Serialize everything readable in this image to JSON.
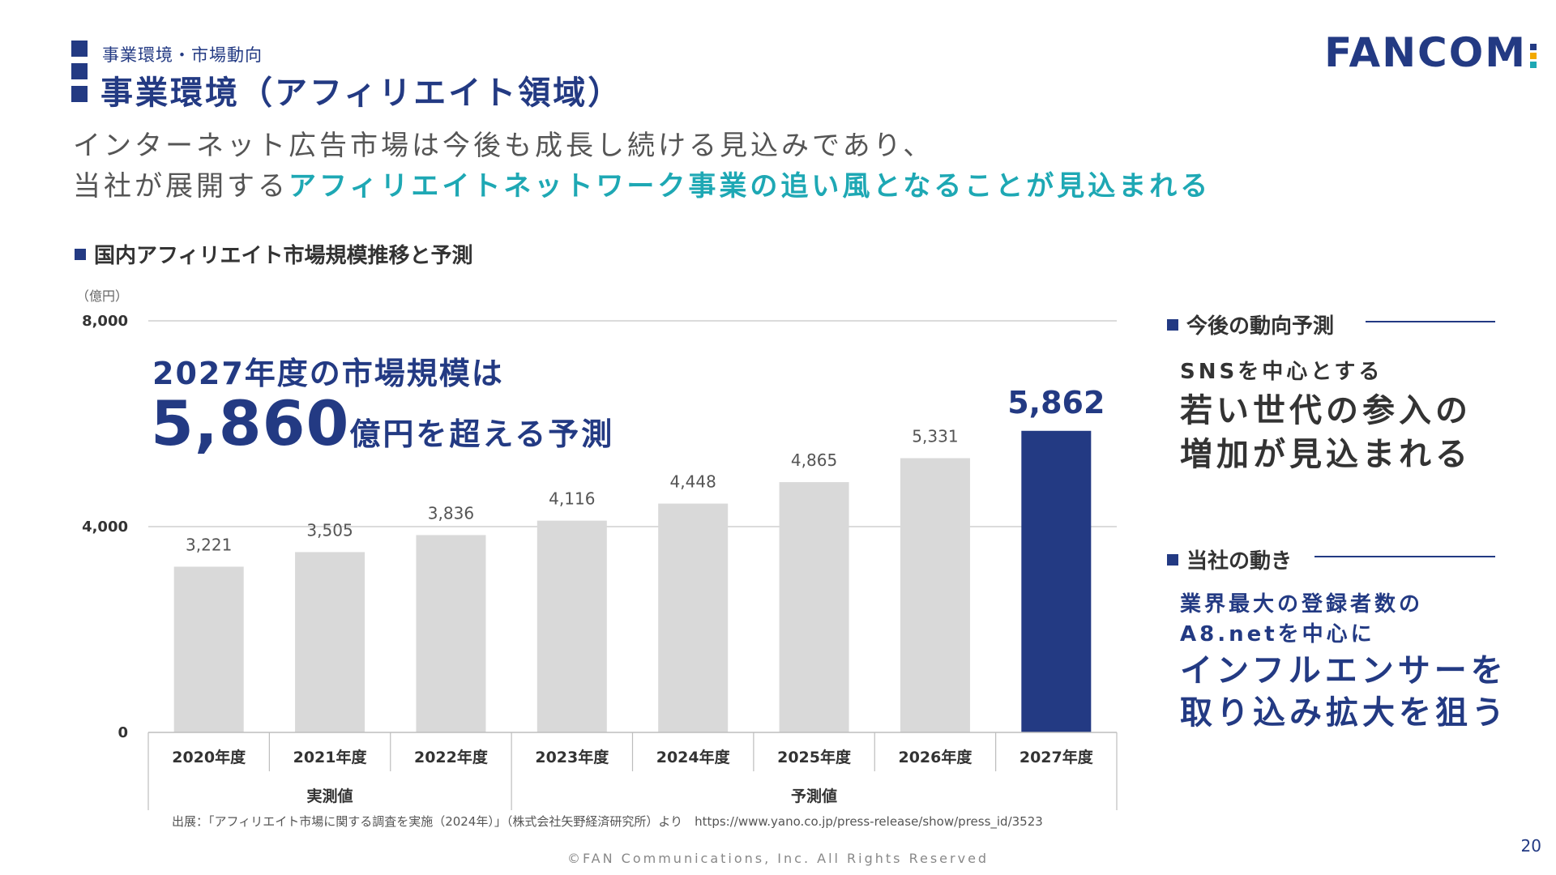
{
  "header": {
    "breadcrumb": "事業環境・市場動向",
    "title": "事業環境（アフィリエイト領域）",
    "logo_text": "FANCOM",
    "logo_colors": [
      "#233a83",
      "#f2a900",
      "#1ea8b4"
    ]
  },
  "lead": {
    "line1": "インターネット広告市場は今後も成長し続ける見込みであり、",
    "line2_plain": "当社が展開する",
    "line2_highlight": "アフィリエイトネットワーク事業の追い風となることが見込まれる"
  },
  "chart_section_title": "国内アフィリエイト市場規模推移と予測",
  "callout": {
    "line1": "2027年度の市場規模は",
    "big_number": "5,860",
    "line2_rest": "億円を超える予測"
  },
  "right_panel": {
    "outlook_title": "今後の動向予測",
    "outlook_sub": "SNSを中心とする",
    "outlook_big": [
      "若い世代の参入の",
      "増加が見込まれる"
    ],
    "company_title": "当社の動き",
    "company_sub": [
      "業界最大の登録者数の",
      "A8.netを中心に"
    ],
    "company_big": [
      "インフルエンサーを",
      "取り込み拡大を狙う"
    ]
  },
  "footer": {
    "source": "出展：「アフィリエイト市場に関する調査を実施（2024年）」（株式会社矢野経済研究所）より　https://www.yano.co.jp/press-release/show/press_id/3523",
    "copyright": "©FAN Communications, Inc. All Rights Reserved",
    "page_number": "20"
  },
  "colors": {
    "navy": "#233a83",
    "teal": "#1ea8b4",
    "bar_gray": "#d9d9d9"
  },
  "chart_data": {
    "type": "bar",
    "title": "国内アフィリエイト市場規模推移と予測",
    "ylabel": "（億円）",
    "ylim": [
      0,
      8000
    ],
    "yticks": [
      0,
      4000,
      8000
    ],
    "ytick_labels": [
      "0",
      "4,000",
      "8,000"
    ],
    "categories": [
      "2020年度",
      "2021年度",
      "2022年度",
      "2023年度",
      "2024年度",
      "2025年度",
      "2026年度",
      "2027年度"
    ],
    "values": [
      3221,
      3505,
      3836,
      4116,
      4448,
      4865,
      5331,
      5862
    ],
    "value_labels": [
      "3,221",
      "3,505",
      "3,836",
      "4,116",
      "4,448",
      "4,865",
      "5,331",
      "5,862"
    ],
    "highlight_index": 7,
    "groups": [
      {
        "label": "実測値",
        "start": 0,
        "end": 2
      },
      {
        "label": "予測値",
        "start": 3,
        "end": 7
      }
    ],
    "grid": true
  }
}
